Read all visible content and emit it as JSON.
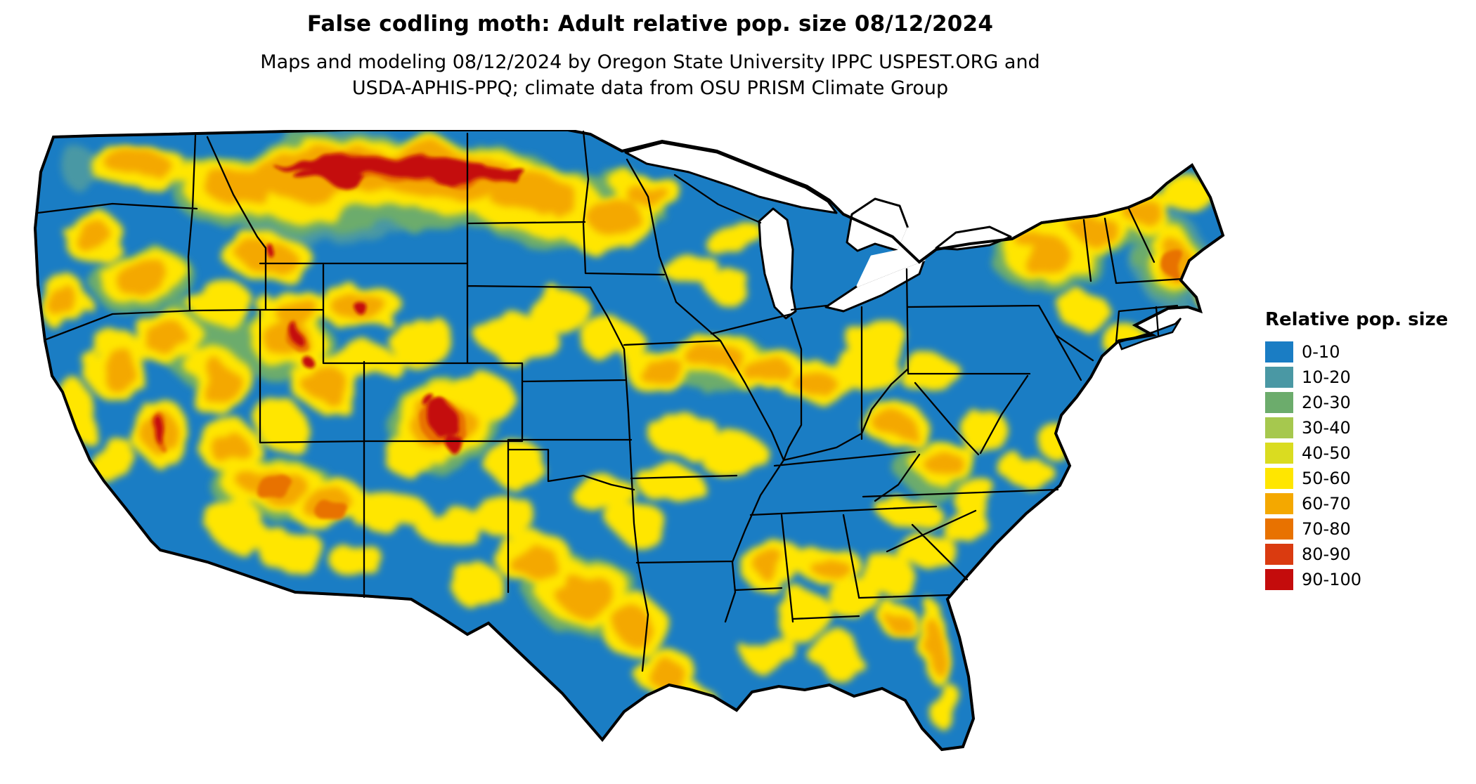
{
  "title": "False codling moth: Adult relative pop. size 08/12/2024",
  "subtitle": {
    "line1": "Maps and modeling 08/12/2024 by Oregon State University IPPC USPEST.ORG and",
    "line2": "USDA-APHIS-PPQ; climate data from OSU PRISM Climate Group"
  },
  "legend": {
    "title": "Relative pop. size",
    "items": [
      {
        "label": "0-10",
        "color": "#1A7DC4"
      },
      {
        "label": "10-20",
        "color": "#4A98A4"
      },
      {
        "label": "20-30",
        "color": "#6CAC6C"
      },
      {
        "label": "30-40",
        "color": "#A6C84E"
      },
      {
        "label": "40-50",
        "color": "#DADC20"
      },
      {
        "label": "50-60",
        "color": "#FFE600"
      },
      {
        "label": "60-70",
        "color": "#F4A800"
      },
      {
        "label": "70-80",
        "color": "#E87200"
      },
      {
        "label": "80-90",
        "color": "#DA3B10"
      },
      {
        "label": "90-100",
        "color": "#C40C0C"
      }
    ]
  }
}
